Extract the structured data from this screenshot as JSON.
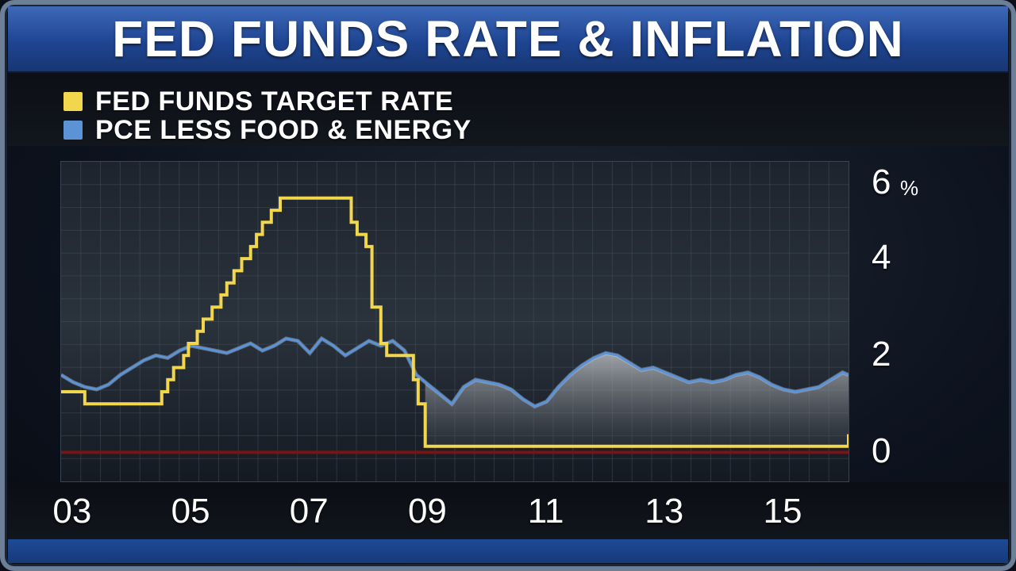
{
  "title": "FED FUNDS RATE & INFLATION",
  "colors": {
    "fed_funds": "#f2d64b",
    "pce": "#5b93d6",
    "zero_line": "#7a1414",
    "title_bar": "#2a55a6"
  },
  "chart_data": {
    "type": "line",
    "title": "FED FUNDS RATE & INFLATION",
    "xlabel": "",
    "ylabel": "",
    "y_unit": "%",
    "ylim": [
      -0.6,
      6
    ],
    "xlim": [
      2002.8,
      2016.1
    ],
    "x_ticks": [
      "03",
      "05",
      "07",
      "09",
      "11",
      "13",
      "15"
    ],
    "x_tick_values": [
      2003,
      2005,
      2007,
      2009,
      2011,
      2013,
      2015
    ],
    "y_ticks": [
      "6",
      "4",
      "2",
      "0"
    ],
    "y_tick_values": [
      6,
      4,
      2,
      0
    ],
    "grid": true,
    "legend_position": "top-left",
    "series": [
      {
        "name": "FED FUNDS TARGET RATE",
        "step": true,
        "points": [
          [
            2002.8,
            1.25
          ],
          [
            2003.0,
            1.25
          ],
          [
            2003.2,
            1.0
          ],
          [
            2004.2,
            1.0
          ],
          [
            2004.5,
            1.25
          ],
          [
            2004.6,
            1.5
          ],
          [
            2004.7,
            1.75
          ],
          [
            2004.87,
            2.0
          ],
          [
            2004.95,
            2.25
          ],
          [
            2005.1,
            2.5
          ],
          [
            2005.2,
            2.75
          ],
          [
            2005.35,
            3.0
          ],
          [
            2005.5,
            3.25
          ],
          [
            2005.6,
            3.5
          ],
          [
            2005.72,
            3.75
          ],
          [
            2005.85,
            4.0
          ],
          [
            2006.0,
            4.25
          ],
          [
            2006.1,
            4.5
          ],
          [
            2006.2,
            4.75
          ],
          [
            2006.35,
            5.0
          ],
          [
            2006.5,
            5.25
          ],
          [
            2007.5,
            5.25
          ],
          [
            2007.7,
            4.75
          ],
          [
            2007.8,
            4.5
          ],
          [
            2007.95,
            4.25
          ],
          [
            2008.05,
            3.0
          ],
          [
            2008.2,
            2.25
          ],
          [
            2008.3,
            2.0
          ],
          [
            2008.75,
            1.5
          ],
          [
            2008.83,
            1.0
          ],
          [
            2008.95,
            0.125
          ],
          [
            2015.95,
            0.125
          ],
          [
            2016.1,
            0.375
          ]
        ]
      },
      {
        "name": "PCE LESS FOOD & ENERGY",
        "points": [
          [
            2002.8,
            1.6
          ],
          [
            2003.0,
            1.45
          ],
          [
            2003.2,
            1.35
          ],
          [
            2003.4,
            1.3
          ],
          [
            2003.6,
            1.4
          ],
          [
            2003.8,
            1.6
          ],
          [
            2004.0,
            1.75
          ],
          [
            2004.2,
            1.9
          ],
          [
            2004.4,
            2.0
          ],
          [
            2004.6,
            1.95
          ],
          [
            2004.8,
            2.1
          ],
          [
            2005.0,
            2.2
          ],
          [
            2005.2,
            2.15
          ],
          [
            2005.4,
            2.1
          ],
          [
            2005.6,
            2.05
          ],
          [
            2005.8,
            2.15
          ],
          [
            2006.0,
            2.25
          ],
          [
            2006.2,
            2.1
          ],
          [
            2006.4,
            2.2
          ],
          [
            2006.6,
            2.35
          ],
          [
            2006.8,
            2.3
          ],
          [
            2007.0,
            2.05
          ],
          [
            2007.2,
            2.35
          ],
          [
            2007.4,
            2.2
          ],
          [
            2007.6,
            2.0
          ],
          [
            2007.8,
            2.15
          ],
          [
            2008.0,
            2.3
          ],
          [
            2008.2,
            2.2
          ],
          [
            2008.4,
            2.3
          ],
          [
            2008.6,
            2.1
          ],
          [
            2008.8,
            1.6
          ],
          [
            2009.0,
            1.4
          ],
          [
            2009.2,
            1.2
          ],
          [
            2009.4,
            1.0
          ],
          [
            2009.6,
            1.35
          ],
          [
            2009.8,
            1.5
          ],
          [
            2010.0,
            1.45
          ],
          [
            2010.2,
            1.4
          ],
          [
            2010.4,
            1.3
          ],
          [
            2010.6,
            1.1
          ],
          [
            2010.8,
            0.95
          ],
          [
            2011.0,
            1.05
          ],
          [
            2011.2,
            1.35
          ],
          [
            2011.4,
            1.6
          ],
          [
            2011.6,
            1.8
          ],
          [
            2011.8,
            1.95
          ],
          [
            2012.0,
            2.05
          ],
          [
            2012.2,
            2.0
          ],
          [
            2012.4,
            1.85
          ],
          [
            2012.6,
            1.7
          ],
          [
            2012.8,
            1.75
          ],
          [
            2013.0,
            1.65
          ],
          [
            2013.2,
            1.55
          ],
          [
            2013.4,
            1.45
          ],
          [
            2013.6,
            1.5
          ],
          [
            2013.8,
            1.45
          ],
          [
            2014.0,
            1.5
          ],
          [
            2014.2,
            1.6
          ],
          [
            2014.4,
            1.65
          ],
          [
            2014.6,
            1.55
          ],
          [
            2014.8,
            1.4
          ],
          [
            2015.0,
            1.3
          ],
          [
            2015.2,
            1.25
          ],
          [
            2015.4,
            1.3
          ],
          [
            2015.6,
            1.35
          ],
          [
            2015.8,
            1.5
          ],
          [
            2016.0,
            1.65
          ],
          [
            2016.1,
            1.6
          ]
        ]
      }
    ],
    "reference_lines": [
      {
        "y": 0,
        "color": "#7a1414"
      }
    ]
  }
}
